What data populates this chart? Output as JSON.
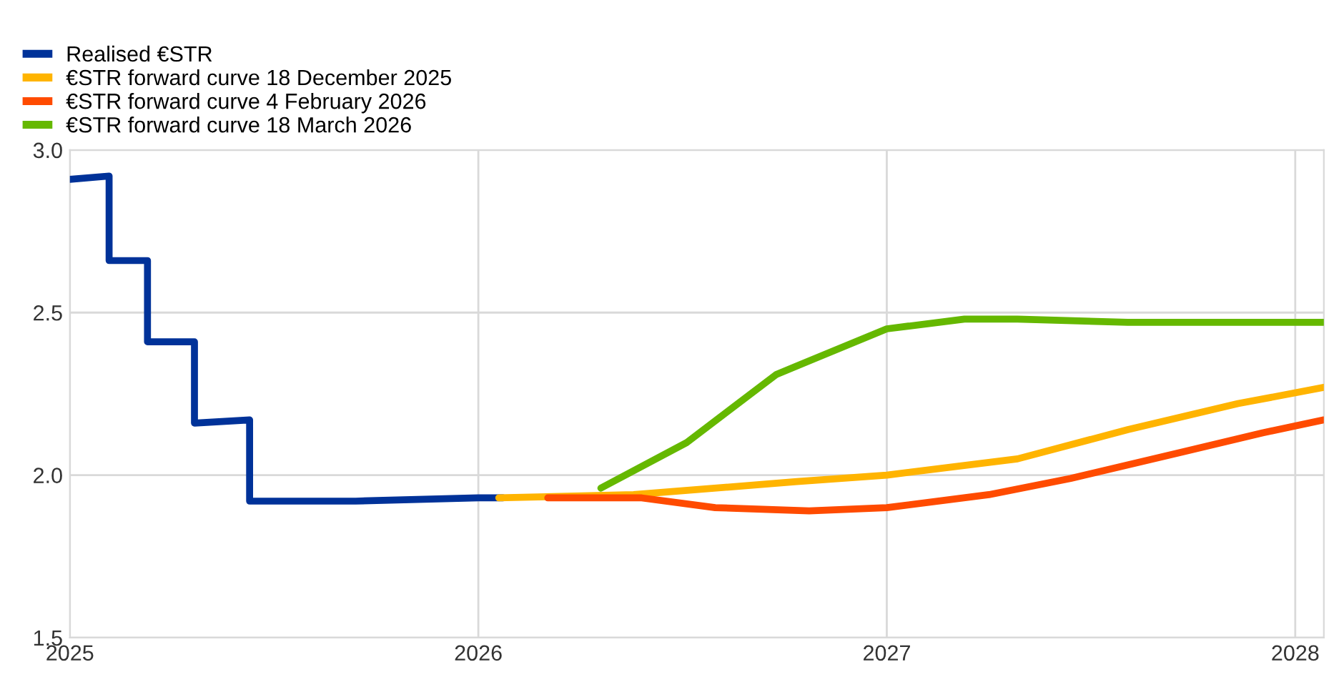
{
  "chart_data": {
    "type": "line",
    "xlim": [
      2025,
      2028.07
    ],
    "xticks": [
      2025,
      2026,
      2027,
      2028
    ],
    "ylim": [
      1.5,
      3.0
    ],
    "yticks": [
      {
        "value": 1.5,
        "label": "1.5"
      },
      {
        "value": 2.0,
        "label": "2.0"
      },
      {
        "value": 2.5,
        "label": "2.5"
      },
      {
        "value": 3.0,
        "label": "3.0"
      }
    ],
    "grid": true,
    "legend": "top left",
    "line_style": "solid",
    "marker": "none",
    "series": [
      {
        "name": "Realised €STR",
        "color": "#003299",
        "x": [
          2025.0,
          2025.096,
          2025.096,
          2025.19,
          2025.19,
          2025.305,
          2025.305,
          2025.44,
          2025.44,
          2025.7,
          2026.0,
          2026.06
        ],
        "values": [
          2.91,
          2.92,
          2.66,
          2.66,
          2.41,
          2.41,
          2.16,
          2.17,
          1.92,
          1.92,
          1.93,
          1.93
        ]
      },
      {
        "name": "€STR forward curve 18 December 2025",
        "color": "#ffb400",
        "x": [
          2026.05,
          2026.38,
          2026.78,
          2027.0,
          2027.32,
          2027.59,
          2027.86,
          2028.07
        ],
        "values": [
          1.93,
          1.94,
          1.98,
          2.0,
          2.05,
          2.14,
          2.22,
          2.27
        ]
      },
      {
        "name": "€STR forward curve 4 February 2026",
        "color": "#ff4b00",
        "x": [
          2026.17,
          2026.4,
          2026.58,
          2026.81,
          2027.0,
          2027.25,
          2027.45,
          2027.72,
          2027.92,
          2028.07
        ],
        "values": [
          1.93,
          1.93,
          1.9,
          1.89,
          1.9,
          1.94,
          1.99,
          2.07,
          2.13,
          2.17
        ]
      },
      {
        "name": "€STR forward curve 18 March 2026",
        "color": "#65b800",
        "x": [
          2026.3,
          2026.51,
          2026.73,
          2027.0,
          2027.19,
          2027.32,
          2027.59,
          2028.07
        ],
        "values": [
          1.96,
          2.1,
          2.31,
          2.45,
          2.48,
          2.48,
          2.47,
          2.47
        ]
      }
    ]
  }
}
